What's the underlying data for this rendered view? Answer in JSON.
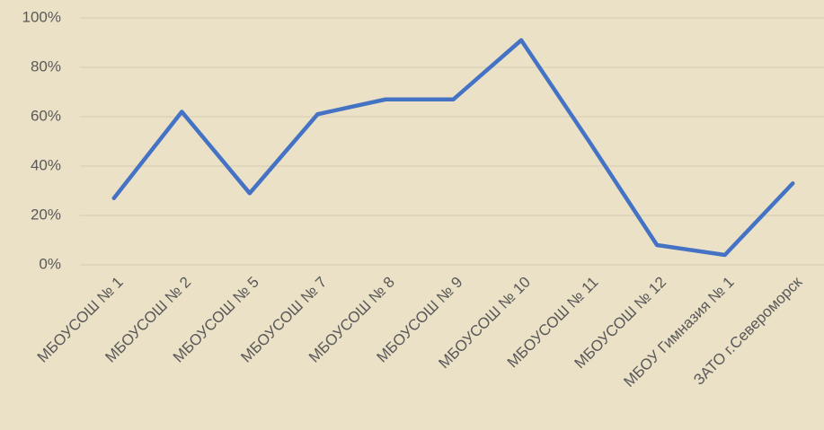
{
  "chart_data": {
    "type": "line",
    "categories": [
      "МБОУСОШ № 1",
      "МБОУСОШ № 2",
      "МБОУСОШ № 5",
      "МБОУСОШ № 7",
      "МБОУСОШ № 8",
      "МБОУСОШ № 9",
      "МБОУСОШ № 10",
      "МБОУСОШ № 11",
      "МБОУСОШ № 12",
      "МБОУ Гимназия № 1",
      "ЗАТО г.Североморск"
    ],
    "values": [
      27,
      62,
      29,
      61,
      67,
      67,
      91,
      50,
      8,
      4,
      33
    ],
    "color": "#4472c4",
    "ylim": [
      0,
      100
    ],
    "yticks": [
      {
        "value": 0,
        "label": "0%"
      },
      {
        "value": 20,
        "label": "20%"
      },
      {
        "value": 40,
        "label": "40%"
      },
      {
        "value": 60,
        "label": "60%"
      },
      {
        "value": 80,
        "label": "80%"
      },
      {
        "value": 100,
        "label": "100%"
      }
    ],
    "grid": true
  }
}
